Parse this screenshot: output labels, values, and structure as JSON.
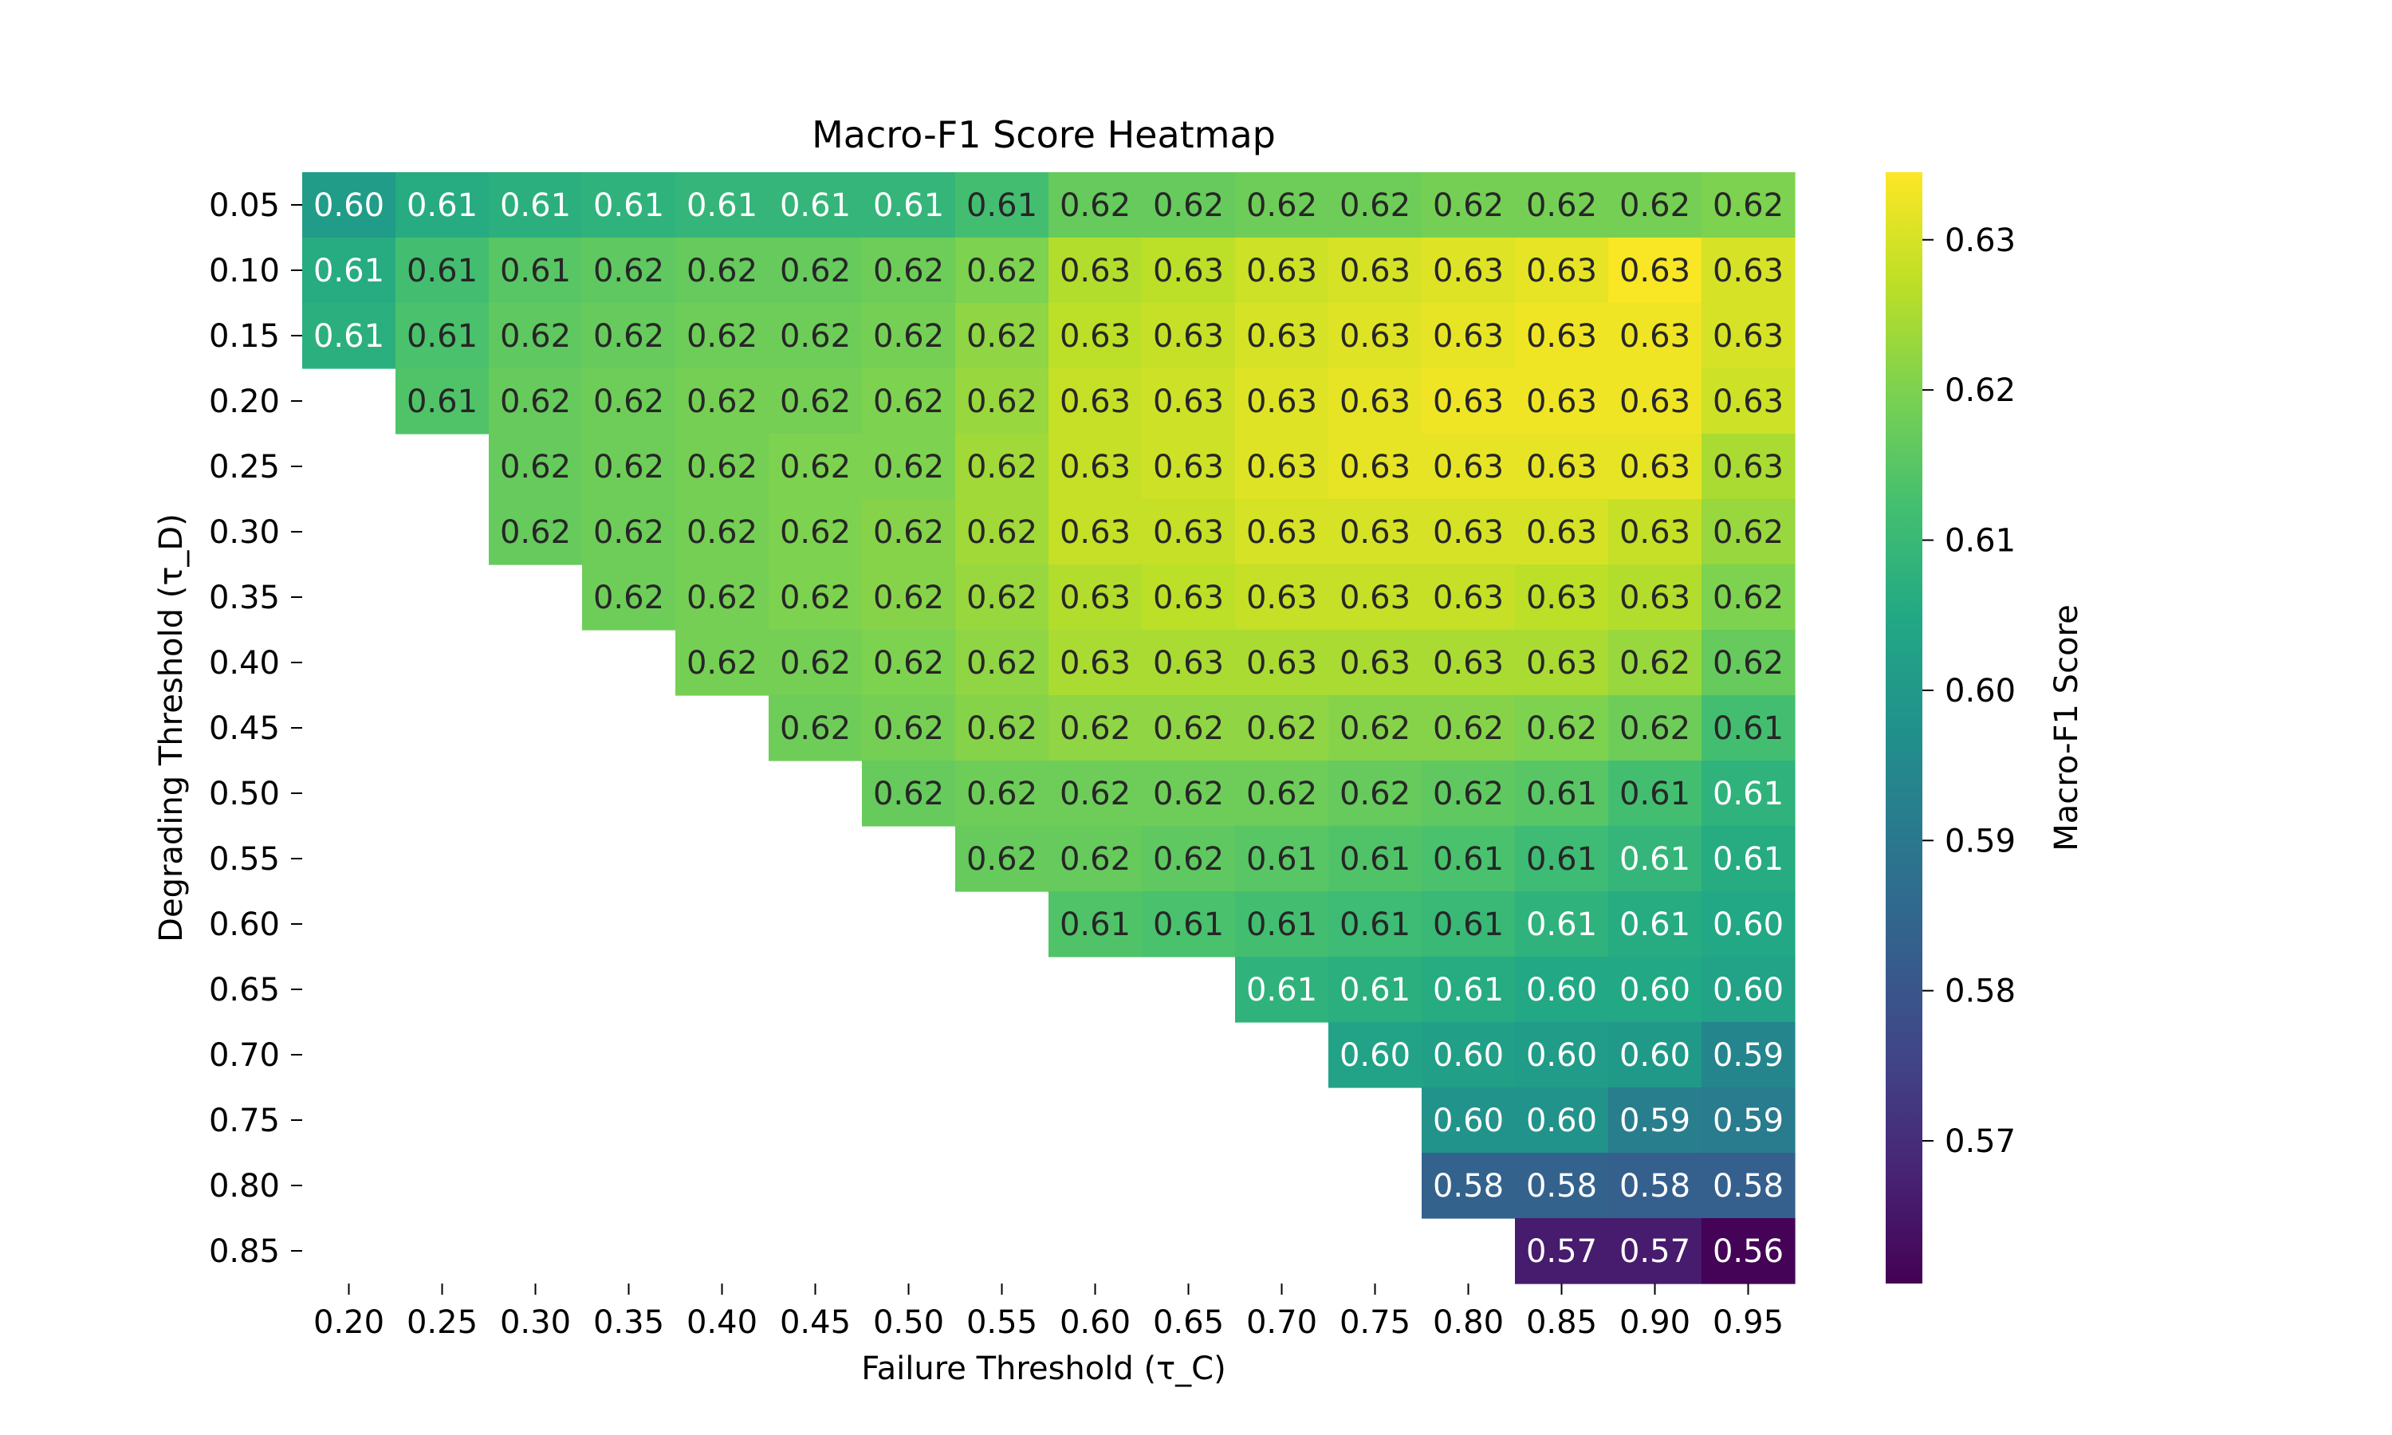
{
  "chart_data": {
    "type": "heatmap",
    "title": "Macro-F1 Score Heatmap",
    "xlabel": "Failure Threshold (τ_C)",
    "ylabel": "Degrading Threshold (τ_D)",
    "colorbar_label": "Macro-F1 Score",
    "colormap": "viridis",
    "color_range": [
      0.5605,
      0.6345
    ],
    "colorbar_ticks": [
      "0.57",
      "0.58",
      "0.59",
      "0.60",
      "0.61",
      "0.62",
      "0.63"
    ],
    "x_categories": [
      "0.20",
      "0.25",
      "0.30",
      "0.35",
      "0.40",
      "0.45",
      "0.50",
      "0.55",
      "0.60",
      "0.65",
      "0.70",
      "0.75",
      "0.80",
      "0.85",
      "0.90",
      "0.95"
    ],
    "y_categories": [
      "0.05",
      "0.10",
      "0.15",
      "0.20",
      "0.25",
      "0.30",
      "0.35",
      "0.40",
      "0.45",
      "0.50",
      "0.55",
      "0.60",
      "0.65",
      "0.70",
      "0.75",
      "0.80",
      "0.85"
    ],
    "values": [
      [
        0.601,
        0.606,
        0.607,
        0.608,
        0.609,
        0.609,
        0.609,
        0.612,
        0.617,
        0.617,
        0.618,
        0.618,
        0.619,
        0.619,
        0.619,
        0.62
      ],
      [
        0.606,
        0.612,
        0.615,
        0.616,
        0.617,
        0.617,
        0.618,
        0.62,
        0.626,
        0.627,
        0.629,
        0.63,
        0.631,
        0.632,
        0.634,
        0.63
      ],
      [
        0.607,
        0.613,
        0.616,
        0.617,
        0.618,
        0.618,
        0.619,
        0.622,
        0.627,
        0.628,
        0.63,
        0.631,
        0.632,
        0.633,
        0.633,
        0.63
      ],
      [
        null,
        0.614,
        0.617,
        0.618,
        0.619,
        0.619,
        0.62,
        0.623,
        0.628,
        0.629,
        0.631,
        0.632,
        0.633,
        0.633,
        0.633,
        0.629
      ],
      [
        null,
        null,
        0.617,
        0.618,
        0.619,
        0.62,
        0.62,
        0.624,
        0.628,
        0.629,
        0.631,
        0.632,
        0.632,
        0.632,
        0.632,
        0.625
      ],
      [
        null,
        null,
        0.617,
        0.618,
        0.619,
        0.62,
        0.621,
        0.624,
        0.628,
        0.628,
        0.63,
        0.63,
        0.63,
        0.63,
        0.628,
        0.623
      ],
      [
        null,
        null,
        null,
        0.618,
        0.619,
        0.62,
        0.621,
        0.623,
        0.626,
        0.627,
        0.628,
        0.628,
        0.628,
        0.627,
        0.626,
        0.62
      ],
      [
        null,
        null,
        null,
        null,
        0.619,
        0.619,
        0.62,
        0.622,
        0.625,
        0.625,
        0.625,
        0.625,
        0.625,
        0.625,
        0.623,
        0.617
      ],
      [
        null,
        null,
        null,
        null,
        null,
        0.618,
        0.619,
        0.621,
        0.622,
        0.622,
        0.622,
        0.621,
        0.621,
        0.62,
        0.618,
        0.612
      ],
      [
        null,
        null,
        null,
        null,
        null,
        null,
        0.617,
        0.618,
        0.618,
        0.618,
        0.618,
        0.617,
        0.616,
        0.615,
        0.612,
        0.608
      ],
      [
        null,
        null,
        null,
        null,
        null,
        null,
        null,
        0.617,
        0.617,
        0.616,
        0.615,
        0.614,
        0.613,
        0.611,
        0.609,
        0.606
      ],
      [
        null,
        null,
        null,
        null,
        null,
        null,
        null,
        null,
        0.614,
        0.613,
        0.612,
        0.611,
        0.61,
        0.608,
        0.606,
        0.605
      ],
      [
        null,
        null,
        null,
        null,
        null,
        null,
        null,
        null,
        null,
        null,
        0.608,
        0.607,
        0.606,
        0.605,
        0.605,
        0.603
      ],
      [
        null,
        null,
        null,
        null,
        null,
        null,
        null,
        null,
        null,
        null,
        null,
        0.603,
        0.602,
        0.601,
        0.6,
        0.594
      ],
      [
        null,
        null,
        null,
        null,
        null,
        null,
        null,
        null,
        null,
        null,
        null,
        null,
        0.598,
        0.598,
        0.592,
        0.591
      ],
      [
        null,
        null,
        null,
        null,
        null,
        null,
        null,
        null,
        null,
        null,
        null,
        null,
        0.584,
        0.584,
        0.583,
        0.583
      ],
      [
        null,
        null,
        null,
        null,
        null,
        null,
        null,
        null,
        null,
        null,
        null,
        null,
        null,
        0.566,
        0.566,
        0.561
      ]
    ]
  }
}
